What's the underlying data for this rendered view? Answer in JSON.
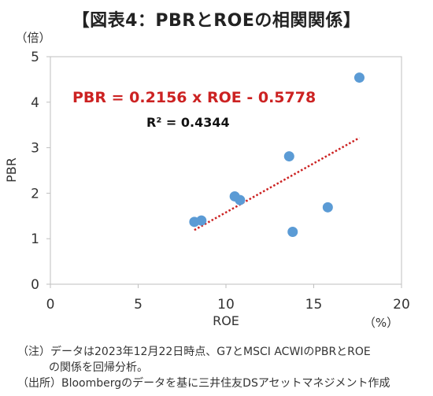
{
  "title": "【図表4：PBRとROEの相関関係】",
  "chart_data": {
    "type": "scatter",
    "xlabel": "ROE",
    "ylabel": "PBR",
    "x_unit": "（%）",
    "y_unit": "（倍）",
    "xlim": [
      0,
      20
    ],
    "ylim": [
      0,
      5
    ],
    "x_ticks": [
      0,
      5,
      10,
      15,
      20
    ],
    "y_ticks": [
      0,
      1,
      2,
      3,
      4,
      5
    ],
    "grid": false,
    "points": [
      {
        "x": 8.2,
        "y": 1.37
      },
      {
        "x": 8.6,
        "y": 1.4
      },
      {
        "x": 10.5,
        "y": 1.93
      },
      {
        "x": 10.8,
        "y": 1.85
      },
      {
        "x": 13.6,
        "y": 2.81
      },
      {
        "x": 13.8,
        "y": 1.15
      },
      {
        "x": 15.8,
        "y": 1.69
      },
      {
        "x": 17.6,
        "y": 4.54
      }
    ],
    "trendline": {
      "slope": 0.2156,
      "intercept": -0.5778,
      "x_range": [
        8.2,
        17.6
      ]
    },
    "equation_label": "PBR = 0.2156 x ROE - 0.5778",
    "r2_label": "R² = 0.4344",
    "colors": {
      "points": "#5b9bd5",
      "trendline": "#cc2222",
      "equation": "#cc2222",
      "axis": "#bfbfbf"
    }
  },
  "notes": [
    "（注）データは2023年12月22日時点、G7とMSCI ACWIのPBRとROE",
    "の関係を回帰分析。",
    "（出所）Bloombergのデータを基に三井住友DSアセットマネジメント作成"
  ]
}
